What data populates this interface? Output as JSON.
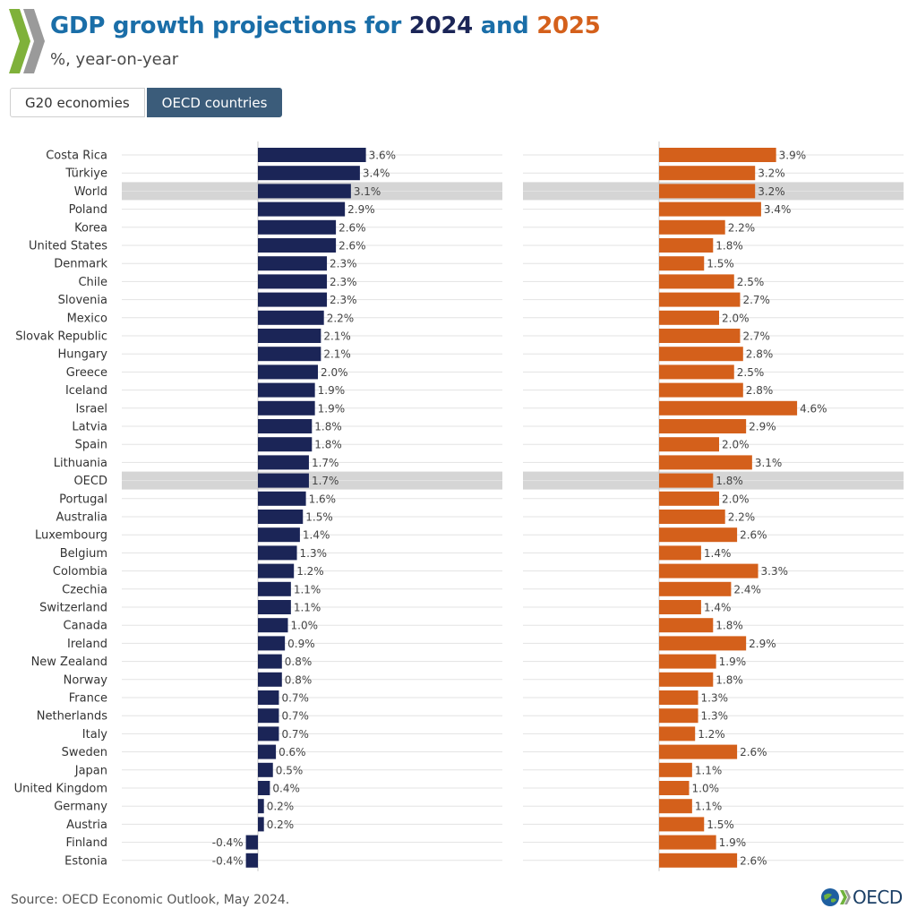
{
  "header": {
    "title_prefix": "GDP growth projections for ",
    "title_year1": "2024",
    "title_mid": " and ",
    "title_year2": "2025",
    "subtitle": "%, year-on-year"
  },
  "tabs": [
    {
      "label": "G20 economies",
      "active": false
    },
    {
      "label": "OECD countries",
      "active": true
    }
  ],
  "footer": {
    "source": "Source: OECD Economic Outlook, May 2024.",
    "logo_text": "OECD"
  },
  "colors": {
    "series_2024": "#1b2557",
    "series_2025": "#d4601b",
    "highlight": "#d5d5d5",
    "grid": "#e3e3e3",
    "axis": "#c8c8c8"
  },
  "chart_data": {
    "type": "bar",
    "orientation": "horizontal",
    "title": "GDP growth projections for 2024 and 2025",
    "unit": "%",
    "categories": [
      "Costa Rica",
      "Türkiye",
      "World",
      "Poland",
      "Korea",
      "United States",
      "Denmark",
      "Chile",
      "Slovenia",
      "Mexico",
      "Slovak Republic",
      "Hungary",
      "Greece",
      "Iceland",
      "Israel",
      "Latvia",
      "Spain",
      "Lithuania",
      "OECD",
      "Portugal",
      "Australia",
      "Luxembourg",
      "Belgium",
      "Colombia",
      "Czechia",
      "Switzerland",
      "Canada",
      "Ireland",
      "New Zealand",
      "Norway",
      "France",
      "Netherlands",
      "Italy",
      "Sweden",
      "Japan",
      "United Kingdom",
      "Germany",
      "Austria",
      "Finland",
      "Estonia"
    ],
    "highlighted": [
      "World",
      "OECD"
    ],
    "series": [
      {
        "name": "2024",
        "values": [
          3.6,
          3.4,
          3.1,
          2.9,
          2.6,
          2.6,
          2.3,
          2.3,
          2.3,
          2.2,
          2.1,
          2.1,
          2.0,
          1.9,
          1.9,
          1.8,
          1.8,
          1.7,
          1.7,
          1.6,
          1.5,
          1.4,
          1.3,
          1.2,
          1.1,
          1.1,
          1.0,
          0.9,
          0.8,
          0.8,
          0.7,
          0.7,
          0.7,
          0.6,
          0.5,
          0.4,
          0.2,
          0.2,
          -0.4,
          -0.4
        ],
        "labels": [
          "3.6%",
          "3.4%",
          "3.1%",
          "2.9%",
          "2.6%",
          "2.6%",
          "2.3%",
          "2.3%",
          "2.3%",
          "2.2%",
          "2.1%",
          "2.1%",
          "2.0%",
          "1.9%",
          "1.9%",
          "1.8%",
          "1.8%",
          "1.7%",
          "1.7%",
          "1.6%",
          "1.5%",
          "1.4%",
          "1.3%",
          "1.2%",
          "1.1%",
          "1.1%",
          "1.0%",
          "0.9%",
          "0.8%",
          "0.8%",
          "0.7%",
          "0.7%",
          "0.7%",
          "0.6%",
          "0.5%",
          "0.4%",
          "0.2%",
          "0.2%",
          "-0.4%",
          "-0.4%"
        ]
      },
      {
        "name": "2025",
        "values": [
          3.9,
          3.2,
          3.2,
          3.4,
          2.2,
          1.8,
          1.5,
          2.5,
          2.7,
          2.0,
          2.7,
          2.8,
          2.5,
          2.8,
          4.6,
          2.9,
          2.0,
          3.1,
          1.8,
          2.0,
          2.2,
          2.6,
          1.4,
          3.3,
          2.4,
          1.4,
          1.8,
          2.9,
          1.9,
          1.8,
          1.3,
          1.3,
          1.2,
          2.6,
          1.1,
          1.0,
          1.1,
          1.5,
          1.9,
          2.6
        ],
        "labels": [
          "3.9%",
          "3.2%",
          "3.2%",
          "3.4%",
          "2.2%",
          "1.8%",
          "1.5%",
          "2.5%",
          "2.7%",
          "2.0%",
          "2.7%",
          "2.8%",
          "2.5%",
          "2.8%",
          "4.6%",
          "2.9%",
          "2.0%",
          "3.1%",
          "1.8%",
          "2.0%",
          "2.2%",
          "2.6%",
          "1.4%",
          "3.3%",
          "2.4%",
          "1.4%",
          "1.8%",
          "2.9%",
          "1.9%",
          "1.8%",
          "1.3%",
          "1.3%",
          "1.2%",
          "2.6%",
          "1.1%",
          "1.0%",
          "1.1%",
          "1.5%",
          "1.9%",
          "2.6%"
        ]
      }
    ]
  }
}
